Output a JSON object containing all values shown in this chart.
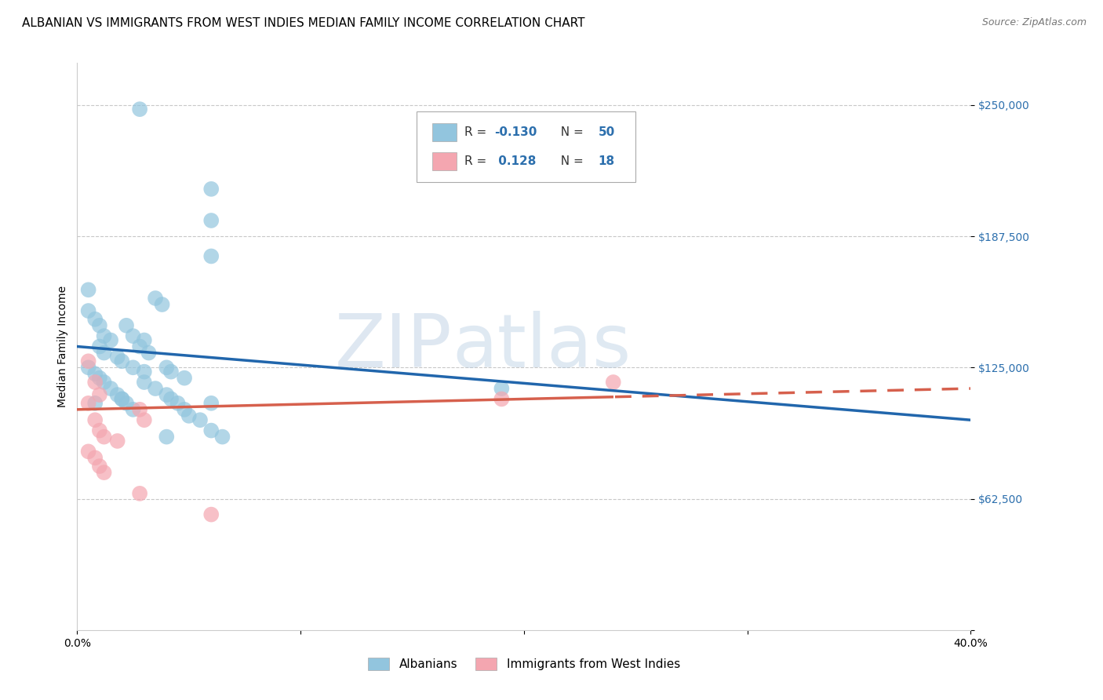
{
  "title": "ALBANIAN VS IMMIGRANTS FROM WEST INDIES MEDIAN FAMILY INCOME CORRELATION CHART",
  "source": "Source: ZipAtlas.com",
  "ylabel": "Median Family Income",
  "yticks": [
    0,
    62500,
    125000,
    187500,
    250000
  ],
  "ytick_labels": [
    "",
    "$62,500",
    "$125,000",
    "$187,500",
    "$250,000"
  ],
  "xlim": [
    0.0,
    0.4
  ],
  "ylim": [
    0,
    270000
  ],
  "blue_color": "#92c5de",
  "pink_color": "#f4a6b0",
  "line_blue": "#2166ac",
  "line_pink": "#d6604d",
  "watermark_color": "#d0dce8",
  "albanians_x": [
    0.028,
    0.06,
    0.06,
    0.06,
    0.005,
    0.005,
    0.008,
    0.01,
    0.012,
    0.015,
    0.01,
    0.012,
    0.018,
    0.02,
    0.022,
    0.025,
    0.03,
    0.028,
    0.032,
    0.035,
    0.038,
    0.04,
    0.042,
    0.048,
    0.008,
    0.01,
    0.012,
    0.015,
    0.018,
    0.02,
    0.022,
    0.025,
    0.03,
    0.19,
    0.03,
    0.035,
    0.04,
    0.042,
    0.045,
    0.048,
    0.05,
    0.055,
    0.06,
    0.065,
    0.005,
    0.008,
    0.06,
    0.04,
    0.02,
    0.025
  ],
  "albanians_y": [
    248000,
    210000,
    195000,
    178000,
    162000,
    152000,
    148000,
    145000,
    140000,
    138000,
    135000,
    132000,
    130000,
    128000,
    145000,
    140000,
    138000,
    135000,
    132000,
    158000,
    155000,
    125000,
    123000,
    120000,
    122000,
    120000,
    118000,
    115000,
    112000,
    110000,
    108000,
    125000,
    123000,
    115000,
    118000,
    115000,
    112000,
    110000,
    108000,
    105000,
    102000,
    100000,
    95000,
    92000,
    125000,
    108000,
    108000,
    92000,
    110000,
    105000
  ],
  "westindies_x": [
    0.005,
    0.008,
    0.01,
    0.005,
    0.008,
    0.01,
    0.012,
    0.018,
    0.005,
    0.008,
    0.01,
    0.012,
    0.028,
    0.03,
    0.24,
    0.028,
    0.19,
    0.06
  ],
  "westindies_y": [
    128000,
    118000,
    112000,
    108000,
    100000,
    95000,
    92000,
    90000,
    85000,
    82000,
    78000,
    75000,
    105000,
    100000,
    118000,
    65000,
    110000,
    55000
  ],
  "title_fontsize": 11,
  "axis_label_fontsize": 10,
  "tick_fontsize": 10,
  "source_fontsize": 9
}
